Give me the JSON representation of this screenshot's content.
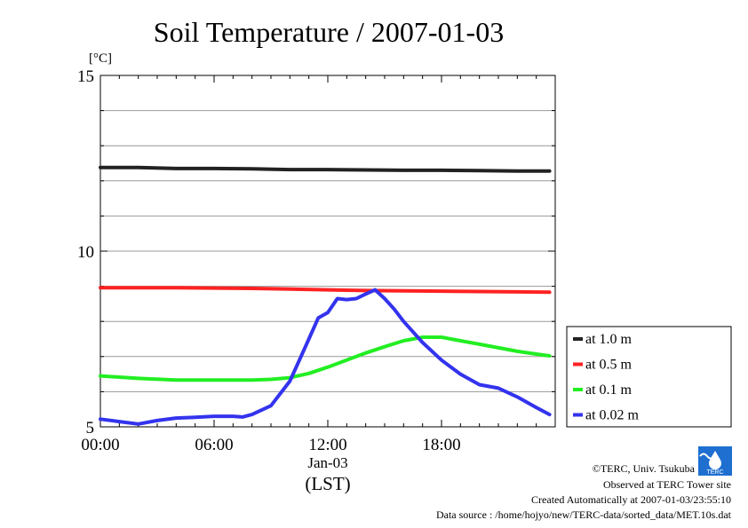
{
  "chart_data": {
    "type": "line",
    "title": "Soil Temperature / 2007-01-03",
    "ylabel": "[°C]",
    "xlabel": "(LST)",
    "date_label": "Jan-03",
    "x_ticks": [
      "00:00",
      "06:00",
      "12:00",
      "18:00"
    ],
    "y_ticks": [
      5,
      10,
      15
    ],
    "ylim": [
      5,
      15
    ],
    "xlim_hours": [
      0,
      24
    ],
    "grid": "horizontal every 1 °C",
    "legend_position": "right",
    "series": [
      {
        "name": "at 1.0 m",
        "color": "#222222",
        "points": [
          [
            0,
            12.38
          ],
          [
            2,
            12.38
          ],
          [
            4,
            12.35
          ],
          [
            6,
            12.35
          ],
          [
            8,
            12.34
          ],
          [
            10,
            12.32
          ],
          [
            12,
            12.32
          ],
          [
            14,
            12.31
          ],
          [
            16,
            12.3
          ],
          [
            18,
            12.3
          ],
          [
            20,
            12.29
          ],
          [
            22,
            12.28
          ],
          [
            23.7,
            12.28
          ]
        ]
      },
      {
        "name": "at 0.5 m",
        "color": "#ff2222",
        "points": [
          [
            0,
            8.96
          ],
          [
            4,
            8.96
          ],
          [
            8,
            8.94
          ],
          [
            10,
            8.92
          ],
          [
            12,
            8.9
          ],
          [
            14,
            8.88
          ],
          [
            16,
            8.87
          ],
          [
            18,
            8.86
          ],
          [
            20,
            8.85
          ],
          [
            22,
            8.84
          ],
          [
            23.7,
            8.83
          ]
        ]
      },
      {
        "name": "at 0.1 m",
        "color": "#22ee22",
        "points": [
          [
            0,
            6.45
          ],
          [
            2,
            6.38
          ],
          [
            4,
            6.33
          ],
          [
            6,
            6.33
          ],
          [
            8,
            6.33
          ],
          [
            9,
            6.35
          ],
          [
            10,
            6.4
          ],
          [
            11,
            6.52
          ],
          [
            12,
            6.7
          ],
          [
            13,
            6.9
          ],
          [
            14,
            7.1
          ],
          [
            15,
            7.28
          ],
          [
            16,
            7.45
          ],
          [
            17,
            7.55
          ],
          [
            18,
            7.55
          ],
          [
            19,
            7.45
          ],
          [
            20,
            7.35
          ],
          [
            21,
            7.25
          ],
          [
            22,
            7.15
          ],
          [
            23,
            7.07
          ],
          [
            23.7,
            7.02
          ]
        ]
      },
      {
        "name": "at 0.02 m",
        "color": "#3333ee",
        "points": [
          [
            0,
            5.22
          ],
          [
            1,
            5.15
          ],
          [
            2,
            5.08
          ],
          [
            3,
            5.18
          ],
          [
            4,
            5.25
          ],
          [
            5,
            5.27
          ],
          [
            6,
            5.3
          ],
          [
            7,
            5.3
          ],
          [
            7.5,
            5.28
          ],
          [
            8,
            5.35
          ],
          [
            9,
            5.6
          ],
          [
            10,
            6.3
          ],
          [
            10.5,
            6.9
          ],
          [
            11,
            7.5
          ],
          [
            11.5,
            8.1
          ],
          [
            12,
            8.25
          ],
          [
            12.5,
            8.65
          ],
          [
            13,
            8.62
          ],
          [
            13.5,
            8.65
          ],
          [
            14,
            8.78
          ],
          [
            14.5,
            8.9
          ],
          [
            15,
            8.65
          ],
          [
            15.5,
            8.35
          ],
          [
            16,
            8.0
          ],
          [
            17,
            7.4
          ],
          [
            18,
            6.9
          ],
          [
            19,
            6.5
          ],
          [
            20,
            6.2
          ],
          [
            21,
            6.1
          ],
          [
            22,
            5.85
          ],
          [
            23,
            5.55
          ],
          [
            23.7,
            5.35
          ]
        ]
      }
    ]
  },
  "credits": {
    "copyright": "©TERC, Univ. Tsukuba",
    "site": "Observed at TERC Tower site",
    "created": "Created Automatically at 2007-01-03/23:55:10",
    "source": "Data source : /home/hojyo/new/TERC-data/sorted_data/MET.10s.dat"
  },
  "logo": {
    "label": "TERC",
    "color": "#1e6fd0"
  }
}
